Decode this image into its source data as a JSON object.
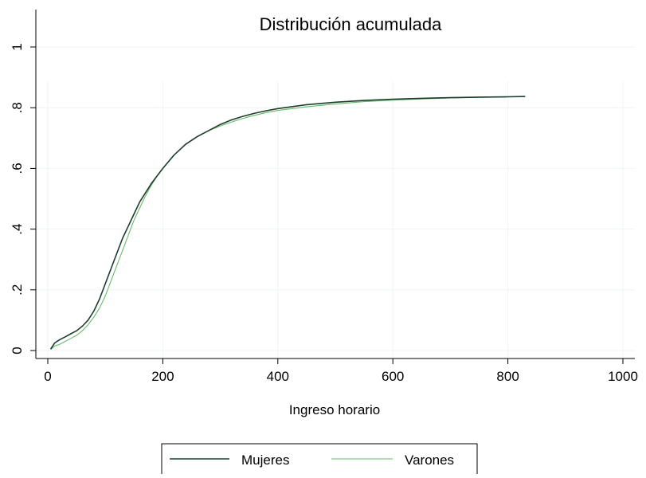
{
  "chart_data": {
    "type": "line",
    "title": "Distribución acumulada",
    "xlabel": "Ingreso horario",
    "ylabel": "",
    "xlim": [
      0,
      1000
    ],
    "ylim": [
      0,
      1
    ],
    "x_ticks": [
      0,
      200,
      400,
      600,
      800,
      1000
    ],
    "x_tick_labels": [
      "0",
      "200",
      "400",
      "600",
      "800",
      "1000"
    ],
    "y_ticks": [
      0,
      0.2,
      0.4,
      0.6,
      0.8,
      1
    ],
    "y_tick_labels": [
      "0",
      ".2",
      ".4",
      ".6",
      ".8",
      "1"
    ],
    "grid": true,
    "legend_position": "bottom",
    "series": [
      {
        "name": "Mujeres",
        "color": "#1f3d2e",
        "x": [
          5,
          12,
          20,
          30,
          40,
          50,
          60,
          70,
          80,
          90,
          100,
          110,
          120,
          130,
          140,
          150,
          160,
          170,
          180,
          190,
          200,
          220,
          240,
          260,
          280,
          300,
          320,
          340,
          360,
          380,
          400,
          450,
          500,
          550,
          600,
          650,
          700,
          750,
          800,
          830
        ],
        "y": [
          0.005,
          0.025,
          0.035,
          0.045,
          0.055,
          0.065,
          0.08,
          0.1,
          0.13,
          0.17,
          0.22,
          0.27,
          0.32,
          0.37,
          0.41,
          0.45,
          0.49,
          0.52,
          0.55,
          0.575,
          0.6,
          0.645,
          0.68,
          0.705,
          0.725,
          0.745,
          0.76,
          0.772,
          0.782,
          0.79,
          0.797,
          0.81,
          0.818,
          0.824,
          0.828,
          0.831,
          0.833,
          0.835,
          0.836,
          0.837
        ]
      },
      {
        "name": "Varones",
        "color": "#66bb6a",
        "x": [
          5,
          12,
          20,
          30,
          40,
          50,
          60,
          70,
          80,
          90,
          100,
          110,
          120,
          130,
          140,
          150,
          160,
          170,
          180,
          190,
          200,
          220,
          240,
          260,
          280,
          300,
          320,
          340,
          360,
          380,
          400,
          450,
          500,
          550,
          600,
          650,
          700,
          750,
          800,
          830
        ],
        "y": [
          0.003,
          0.015,
          0.02,
          0.03,
          0.04,
          0.05,
          0.065,
          0.085,
          0.11,
          0.14,
          0.18,
          0.23,
          0.28,
          0.33,
          0.38,
          0.43,
          0.47,
          0.51,
          0.545,
          0.575,
          0.6,
          0.645,
          0.68,
          0.705,
          0.725,
          0.74,
          0.753,
          0.765,
          0.775,
          0.784,
          0.791,
          0.803,
          0.812,
          0.82,
          0.825,
          0.829,
          0.832,
          0.834,
          0.836,
          0.837
        ]
      }
    ]
  }
}
